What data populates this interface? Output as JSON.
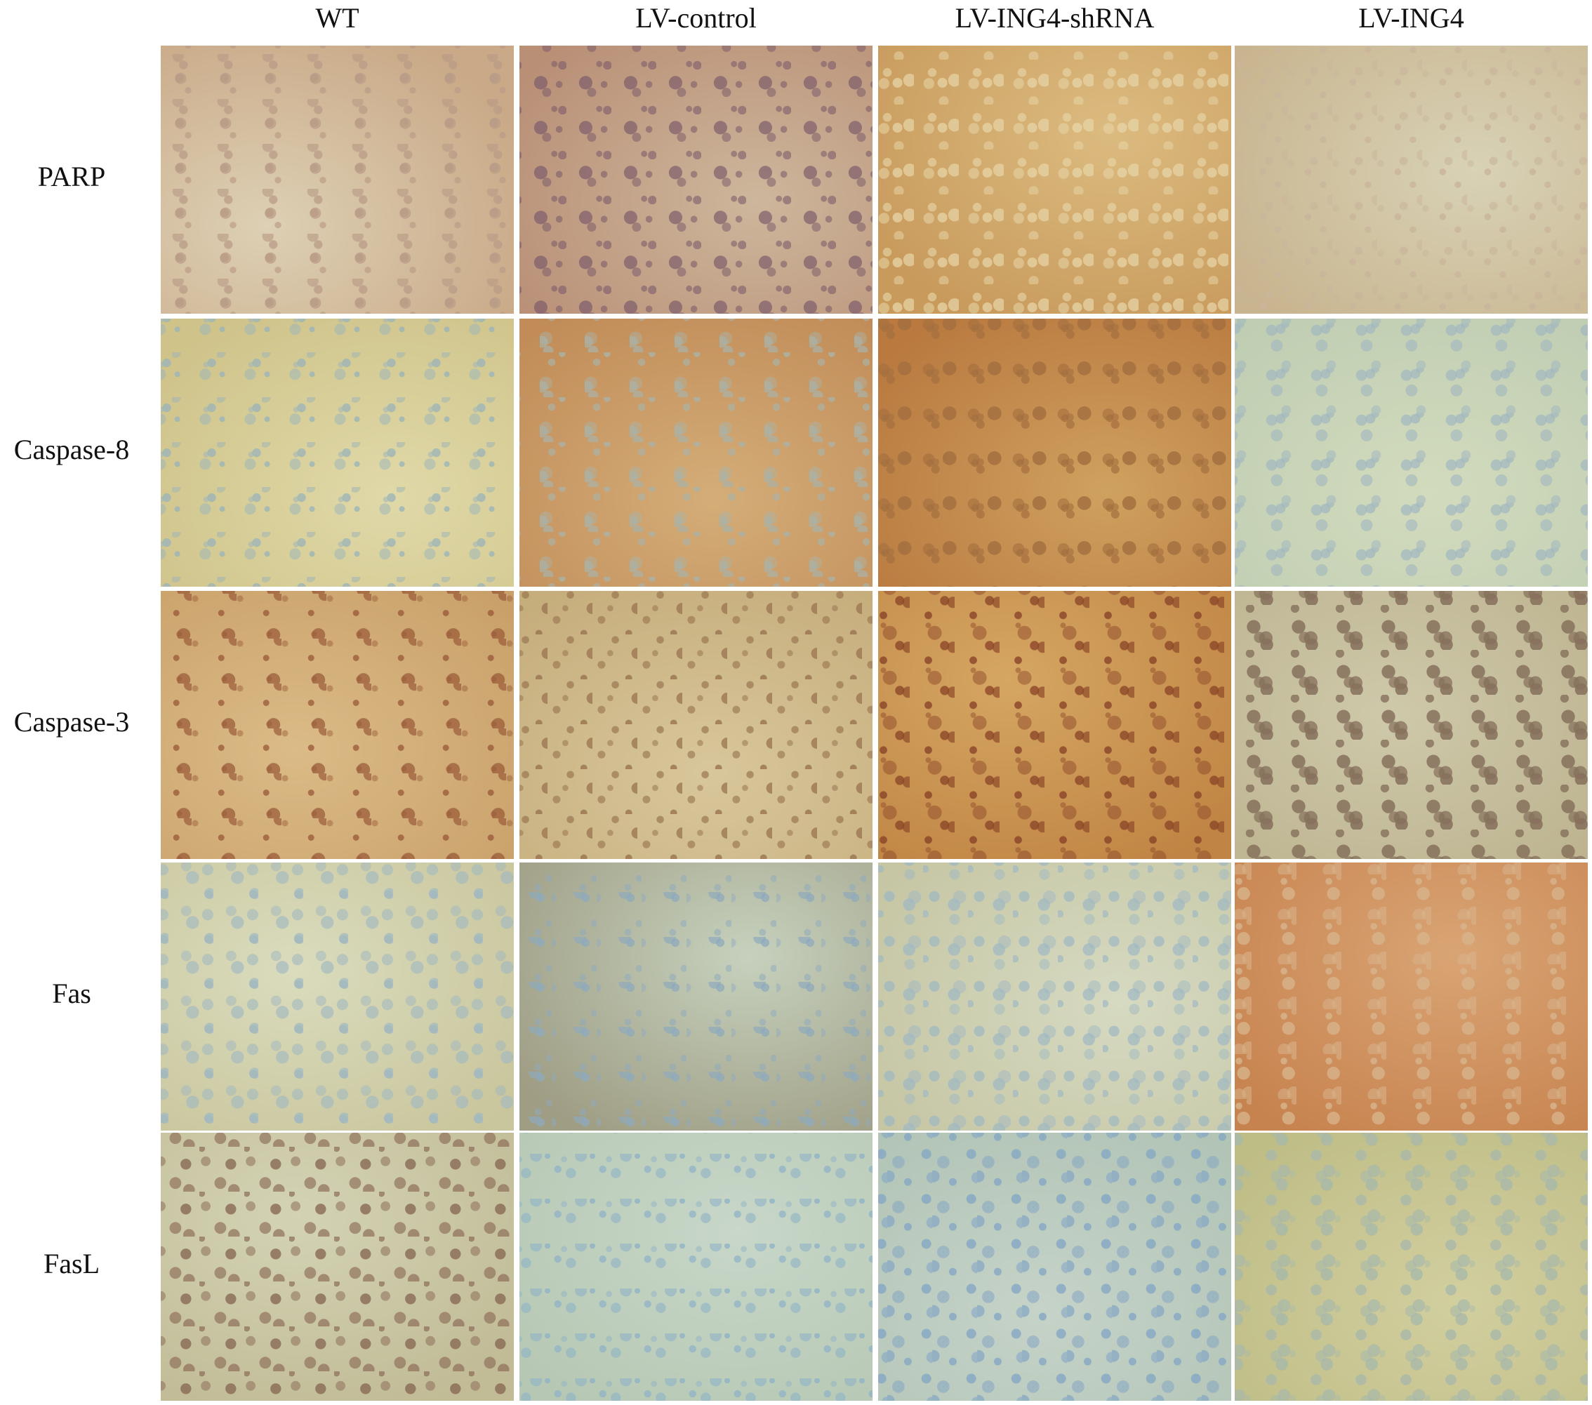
{
  "column_headers": [
    "WT",
    "LV-control",
    "LV-ING4-shRNA",
    "LV-ING4"
  ],
  "row_labels": [
    "PARP",
    "Caspase-8",
    "Caspase-3",
    "Fas",
    "FasL"
  ]
}
